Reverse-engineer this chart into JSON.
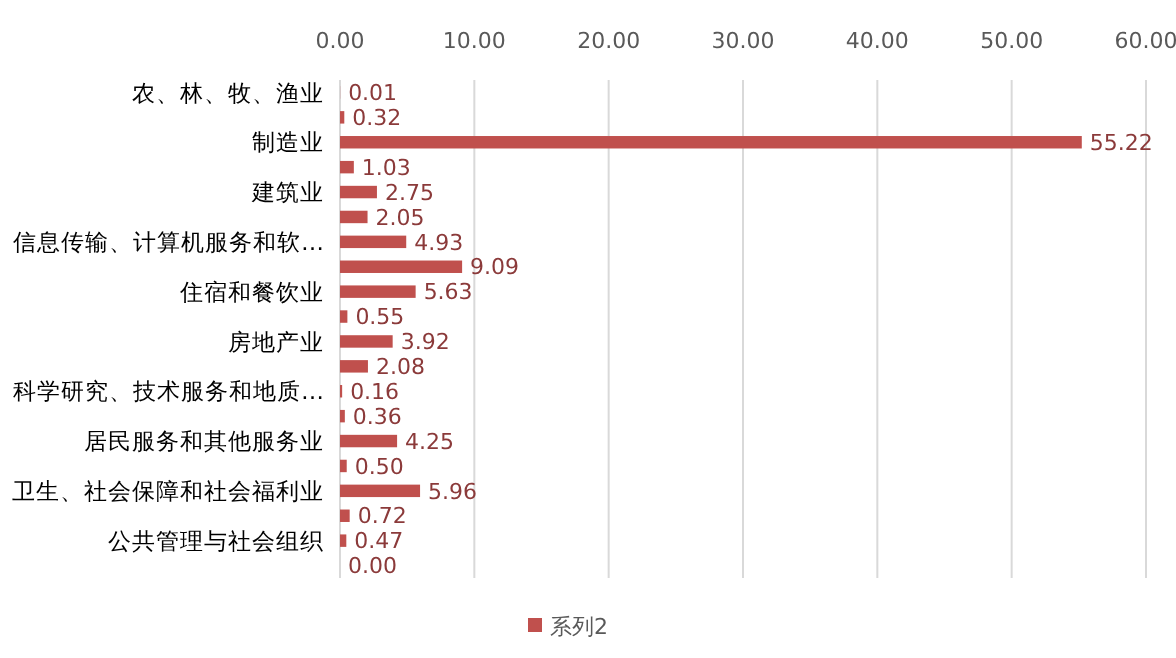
{
  "chart_data": {
    "type": "bar",
    "orientation": "horizontal",
    "categories": [
      "农、林、牧、渔业",
      null,
      "制造业",
      null,
      "建筑业",
      null,
      "信息传输、计算机服务和软…",
      null,
      "住宿和餐饮业",
      null,
      "房地产业",
      null,
      "科学研究、技术服务和地质…",
      null,
      "居民服务和其他服务业",
      null,
      "卫生、社会保障和社会福利业",
      null,
      "公共管理与社会组织",
      null
    ],
    "series": [
      {
        "name": "系列2",
        "color": "#c0504d",
        "values": [
          0.01,
          0.32,
          55.22,
          1.03,
          2.75,
          2.05,
          4.93,
          9.09,
          5.63,
          0.55,
          3.92,
          2.08,
          0.16,
          0.36,
          4.25,
          0.5,
          5.96,
          0.72,
          0.47,
          0.0
        ],
        "value_labels": [
          "0.01",
          "0.32",
          "55.22",
          "1.03",
          "2.75",
          "2.05",
          "4.93",
          "9.09",
          "5.63",
          "0.55",
          "3.92",
          "2.08",
          "0.16",
          "0.36",
          "4.25",
          "0.50",
          "5.96",
          "0.72",
          "0.47",
          "0.00"
        ]
      }
    ],
    "xlim": [
      0,
      60
    ],
    "xticks": [
      {
        "value": 0,
        "label": "0.00"
      },
      {
        "value": 10,
        "label": "10.00"
      },
      {
        "value": 20,
        "label": "20.00"
      },
      {
        "value": 30,
        "label": "30.00"
      },
      {
        "value": 40,
        "label": "40.00"
      },
      {
        "value": 50,
        "label": "50.00"
      },
      {
        "value": 60,
        "label": "60.00"
      }
    ],
    "grid": "x",
    "legend": "bottom"
  }
}
